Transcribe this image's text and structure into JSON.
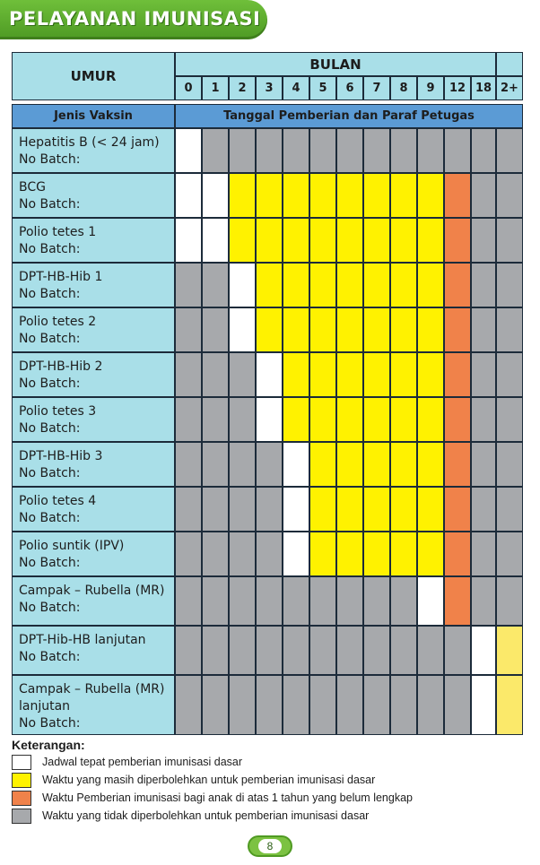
{
  "title": "PELAYANAN IMUNISASI",
  "table": {
    "header_age": "UMUR",
    "header_month": "BULAN",
    "months": [
      "0",
      "1",
      "2",
      "3",
      "4",
      "5",
      "6",
      "7",
      "8",
      "9",
      "12",
      "18",
      "2+"
    ],
    "sub_left": "Jenis Vaksin",
    "sub_right": "Tanggal Pemberian dan Paraf Petugas",
    "rows": [
      {
        "lines": [
          "Hepatitis B (< 24 jam)",
          "No Batch:"
        ],
        "cells": [
          "W",
          "G",
          "G",
          "G",
          "G",
          "G",
          "G",
          "G",
          "G",
          "G",
          "G",
          "G",
          "G"
        ]
      },
      {
        "lines": [
          "BCG",
          "No Batch:"
        ],
        "cells": [
          "W",
          "W",
          "Y",
          "Y",
          "Y",
          "Y",
          "Y",
          "Y",
          "Y",
          "Y",
          "O",
          "G",
          "G"
        ]
      },
      {
        "lines": [
          "Polio tetes 1",
          "No Batch:"
        ],
        "cells": [
          "W",
          "W",
          "Y",
          "Y",
          "Y",
          "Y",
          "Y",
          "Y",
          "Y",
          "Y",
          "O",
          "G",
          "G"
        ]
      },
      {
        "lines": [
          "DPT-HB-Hib 1",
          "No Batch:"
        ],
        "cells": [
          "G",
          "G",
          "W",
          "Y",
          "Y",
          "Y",
          "Y",
          "Y",
          "Y",
          "Y",
          "O",
          "G",
          "G"
        ]
      },
      {
        "lines": [
          "Polio tetes 2",
          "No Batch:"
        ],
        "cells": [
          "G",
          "G",
          "W",
          "Y",
          "Y",
          "Y",
          "Y",
          "Y",
          "Y",
          "Y",
          "O",
          "G",
          "G"
        ]
      },
      {
        "lines": [
          "DPT-HB-Hib 2",
          "No Batch:"
        ],
        "cells": [
          "G",
          "G",
          "G",
          "W",
          "Y",
          "Y",
          "Y",
          "Y",
          "Y",
          "Y",
          "O",
          "G",
          "G"
        ]
      },
      {
        "lines": [
          "Polio tetes 3",
          "No Batch:"
        ],
        "cells": [
          "G",
          "G",
          "G",
          "W",
          "Y",
          "Y",
          "Y",
          "Y",
          "Y",
          "Y",
          "O",
          "G",
          "G"
        ]
      },
      {
        "lines": [
          "DPT-HB-Hib 3",
          "No Batch:"
        ],
        "cells": [
          "G",
          "G",
          "G",
          "G",
          "W",
          "Y",
          "Y",
          "Y",
          "Y",
          "Y",
          "O",
          "G",
          "G"
        ]
      },
      {
        "lines": [
          "Polio tetes 4",
          "No Batch:"
        ],
        "cells": [
          "G",
          "G",
          "G",
          "G",
          "W",
          "Y",
          "Y",
          "Y",
          "Y",
          "Y",
          "O",
          "G",
          "G"
        ]
      },
      {
        "lines": [
          "Polio suntik (IPV)",
          "No Batch:"
        ],
        "cells": [
          "G",
          "G",
          "G",
          "G",
          "W",
          "Y",
          "Y",
          "Y",
          "Y",
          "Y",
          "O",
          "G",
          "G"
        ]
      },
      {
        "lines": [
          "Campak – Rubella (MR)",
          "No Batch:"
        ],
        "cells": [
          "G",
          "G",
          "G",
          "G",
          "G",
          "G",
          "G",
          "G",
          "G",
          "W",
          "O",
          "G",
          "G"
        ]
      },
      {
        "lines": [
          "DPT-Hib-HB lanjutan",
          "No Batch:"
        ],
        "cells": [
          "G",
          "G",
          "G",
          "G",
          "G",
          "G",
          "G",
          "G",
          "G",
          "G",
          "G",
          "W",
          "Y"
        ]
      },
      {
        "lines": [
          "Campak – Rubella (MR)",
          "lanjutan",
          "No Batch:"
        ],
        "cells": [
          "G",
          "G",
          "G",
          "G",
          "G",
          "G",
          "G",
          "G",
          "G",
          "G",
          "G",
          "W",
          "Y"
        ]
      }
    ]
  },
  "colors": {
    "W": "#ffffff",
    "Y": "#fff200",
    "O": "#f0824a",
    "G": "#a7a9ac",
    "Y2": "#fbe96a"
  },
  "legend": {
    "title": "Keterangan:",
    "items": [
      {
        "color": "#ffffff",
        "text": "Jadwal tepat pemberian imunisasi dasar"
      },
      {
        "color": "#fff200",
        "text": "Waktu yang masih diperbolehkan untuk pemberian imunisasi dasar"
      },
      {
        "color": "#f0824a",
        "text": "Waktu Pemberian imunisasi bagi anak di atas 1 tahun yang belum lengkap"
      },
      {
        "color": "#a7a9ac",
        "text": "Waktu yang tidak diperbolehkan untuk pemberian imunisasi dasar"
      }
    ]
  },
  "page_number": "8"
}
